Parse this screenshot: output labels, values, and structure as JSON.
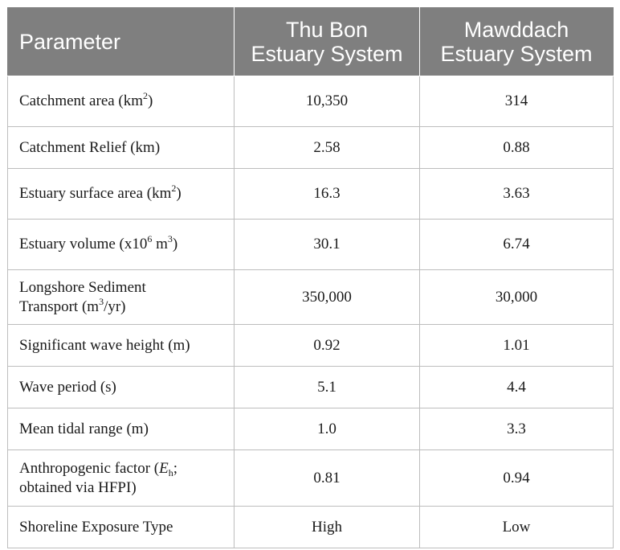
{
  "table": {
    "headers": {
      "parameter": "Parameter",
      "thu_bon_line1": "Thu Bon",
      "thu_bon_line2": "Estuary System",
      "mawddach_line1": "Mawddach",
      "mawddach_line2": "Estuary System"
    },
    "rows": {
      "catchment_area": {
        "label_pre": "Catchment area (km",
        "label_sup": "2",
        "label_post": ")",
        "thu_bon": "10,350",
        "mawddach": "314"
      },
      "catchment_relief": {
        "label": "Catchment Relief (km)",
        "thu_bon": "2.58",
        "mawddach": "0.88"
      },
      "estuary_surface_area": {
        "label_pre": "Estuary surface area (km",
        "label_sup": "2",
        "label_post": ")",
        "thu_bon": "16.3",
        "mawddach": "3.63"
      },
      "estuary_volume": {
        "label_pre": "Estuary volume (x10",
        "label_sup1": "6",
        "label_mid": " m",
        "label_sup2": "3",
        "label_post": ")",
        "thu_bon": "30.1",
        "mawddach": "6.74"
      },
      "longshore_sediment": {
        "label_line1": "Longshore Sediment",
        "label_pre": "Transport (m",
        "label_sup": "3",
        "label_post": "/yr)",
        "thu_bon": "350,000",
        "mawddach": "30,000"
      },
      "significant_wave_height": {
        "label": "Significant wave height (m)",
        "thu_bon": "0.92",
        "mawddach": "1.01"
      },
      "wave_period": {
        "label": "Wave period (s)",
        "thu_bon": "5.1",
        "mawddach": "4.4"
      },
      "mean_tidal_range": {
        "label": "Mean tidal range (m)",
        "thu_bon": "1.0",
        "mawddach": "3.3"
      },
      "anthropogenic_factor": {
        "label_pre": "Anthropogenic factor (",
        "label_italic": "E",
        "label_sub": "h",
        "label_post": ";",
        "label_line2": "obtained via HFPI)",
        "thu_bon": "0.81",
        "mawddach": "0.94"
      },
      "shoreline_exposure": {
        "label": "Shoreline Exposure Type",
        "thu_bon": "High",
        "mawddach": "Low"
      }
    }
  }
}
